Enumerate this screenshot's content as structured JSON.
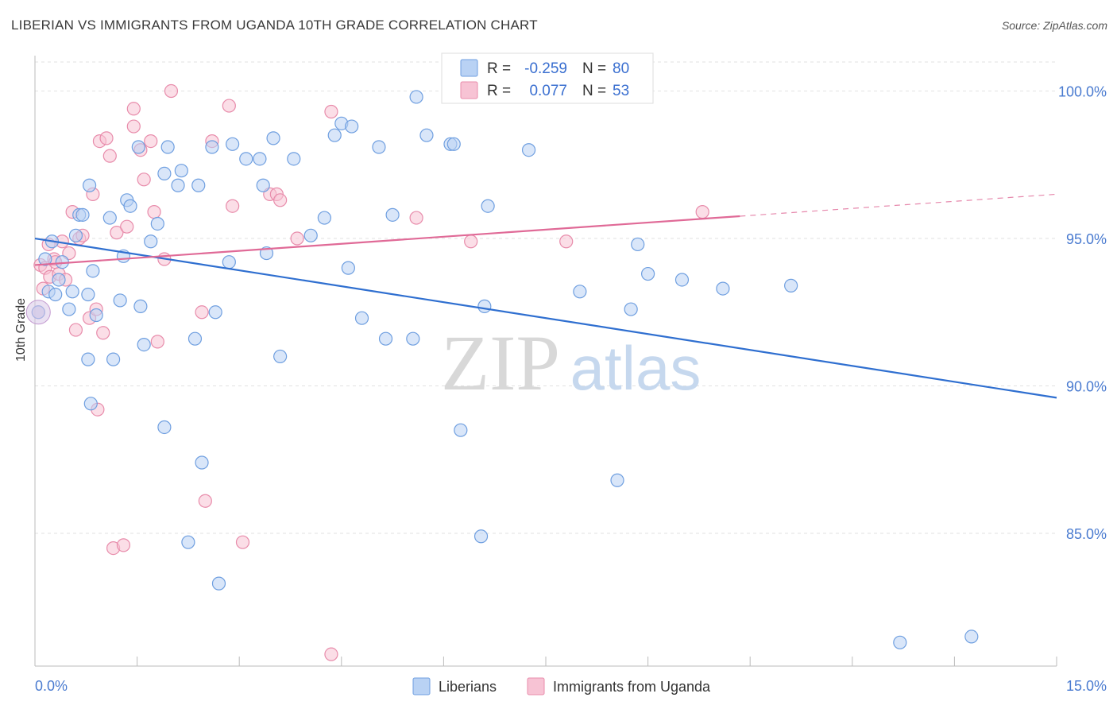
{
  "title": "LIBERIAN VS IMMIGRANTS FROM UGANDA 10TH GRADE CORRELATION CHART",
  "source": "Source: ZipAtlas.com",
  "watermark": {
    "zip": "ZIP",
    "atlas": "atlas"
  },
  "chart_data": {
    "type": "scatter",
    "xlabel": "",
    "ylabel": "10th Grade",
    "xlim": [
      0,
      15
    ],
    "ylim": [
      80.5,
      101.2
    ],
    "x_tick_labels": [
      "0.0%",
      "15.0%"
    ],
    "y_ticks": [
      85,
      90,
      95,
      100
    ],
    "y_tick_labels": [
      "85.0%",
      "90.0%",
      "95.0%",
      "100.0%"
    ],
    "legend_stats": [
      {
        "r_label": "R =",
        "r_value": "-0.259",
        "n_label": "N =",
        "n_value": "80"
      },
      {
        "r_label": "R =",
        "r_value": "0.077",
        "n_label": "N =",
        "n_value": "53"
      }
    ],
    "series": [
      {
        "name": "Liberians",
        "color": "#6f9fe0",
        "fill": "#b9d2f4",
        "trend": {
          "x0": 0,
          "y0": 95.0,
          "x1": 15,
          "y1": 89.6,
          "dashed_from": null
        },
        "points": [
          [
            0.05,
            92.5
          ],
          [
            0.15,
            94.3
          ],
          [
            0.2,
            93.2
          ],
          [
            0.25,
            94.9
          ],
          [
            0.3,
            93.1
          ],
          [
            0.35,
            93.6
          ],
          [
            0.4,
            94.2
          ],
          [
            0.5,
            92.6
          ],
          [
            0.55,
            93.2
          ],
          [
            0.6,
            95.1
          ],
          [
            0.65,
            95.8
          ],
          [
            0.7,
            95.8
          ],
          [
            0.8,
            96.8
          ],
          [
            0.85,
            93.9
          ],
          [
            0.78,
            93.1
          ],
          [
            0.9,
            92.4
          ],
          [
            0.78,
            90.9
          ],
          [
            0.82,
            89.4
          ],
          [
            1.1,
            95.7
          ],
          [
            1.25,
            92.9
          ],
          [
            1.3,
            94.4
          ],
          [
            1.35,
            96.3
          ],
          [
            1.4,
            96.1
          ],
          [
            1.55,
            92.7
          ],
          [
            1.6,
            91.4
          ],
          [
            1.7,
            94.9
          ],
          [
            1.15,
            90.9
          ],
          [
            1.52,
            98.1
          ],
          [
            1.8,
            95.5
          ],
          [
            1.9,
            97.2
          ],
          [
            1.9,
            88.6
          ],
          [
            1.95,
            98.1
          ],
          [
            2.1,
            96.8
          ],
          [
            2.15,
            97.3
          ],
          [
            2.25,
            84.7
          ],
          [
            2.35,
            91.6
          ],
          [
            2.4,
            96.8
          ],
          [
            2.45,
            87.4
          ],
          [
            2.6,
            98.1
          ],
          [
            2.65,
            92.5
          ],
          [
            2.7,
            83.3
          ],
          [
            2.85,
            94.2
          ],
          [
            2.9,
            98.2
          ],
          [
            3.1,
            97.7
          ],
          [
            3.3,
            97.7
          ],
          [
            3.35,
            96.8
          ],
          [
            3.4,
            94.5
          ],
          [
            3.5,
            98.4
          ],
          [
            3.6,
            91.0
          ],
          [
            3.8,
            97.7
          ],
          [
            4.05,
            95.1
          ],
          [
            4.25,
            95.7
          ],
          [
            4.4,
            98.5
          ],
          [
            4.5,
            98.9
          ],
          [
            4.6,
            94.0
          ],
          [
            4.65,
            98.8
          ],
          [
            4.8,
            92.3
          ],
          [
            5.05,
            98.1
          ],
          [
            5.15,
            91.6
          ],
          [
            5.25,
            95.8
          ],
          [
            5.55,
            91.6
          ],
          [
            5.6,
            99.8
          ],
          [
            5.75,
            98.5
          ],
          [
            6.1,
            98.2
          ],
          [
            6.15,
            98.2
          ],
          [
            6.25,
            88.5
          ],
          [
            6.55,
            84.9
          ],
          [
            6.6,
            92.7
          ],
          [
            6.65,
            96.1
          ],
          [
            7.25,
            98.0
          ],
          [
            8.0,
            93.2
          ],
          [
            8.55,
            86.8
          ],
          [
            8.75,
            92.6
          ],
          [
            8.85,
            94.8
          ],
          [
            9.0,
            93.8
          ],
          [
            9.5,
            93.6
          ],
          [
            10.1,
            93.3
          ],
          [
            11.1,
            93.4
          ],
          [
            12.7,
            81.3
          ],
          [
            13.75,
            81.5
          ]
        ]
      },
      {
        "name": "Immigrants from Uganda",
        "color": "#e88cab",
        "fill": "#f7c3d4",
        "trend": {
          "x0": 0,
          "y0": 94.1,
          "x1": 15,
          "y1": 96.5,
          "dashed_from": 10.35
        },
        "points": [
          [
            0.05,
            92.5
          ],
          [
            0.08,
            94.1
          ],
          [
            0.12,
            93.3
          ],
          [
            0.15,
            94.0
          ],
          [
            0.2,
            94.8
          ],
          [
            0.22,
            93.7
          ],
          [
            0.28,
            94.3
          ],
          [
            0.3,
            94.2
          ],
          [
            0.35,
            93.8
          ],
          [
            0.4,
            94.9
          ],
          [
            0.45,
            93.6
          ],
          [
            0.5,
            94.5
          ],
          [
            0.55,
            95.9
          ],
          [
            0.6,
            91.9
          ],
          [
            0.65,
            95.0
          ],
          [
            0.7,
            95.1
          ],
          [
            0.8,
            92.3
          ],
          [
            0.85,
            96.5
          ],
          [
            0.9,
            92.6
          ],
          [
            0.92,
            89.2
          ],
          [
            0.95,
            98.3
          ],
          [
            1.0,
            91.8
          ],
          [
            1.05,
            98.4
          ],
          [
            1.1,
            97.8
          ],
          [
            1.15,
            84.5
          ],
          [
            1.2,
            95.2
          ],
          [
            1.3,
            84.6
          ],
          [
            1.35,
            95.4
          ],
          [
            1.45,
            98.8
          ],
          [
            1.45,
            99.4
          ],
          [
            1.55,
            98.0
          ],
          [
            1.6,
            97.0
          ],
          [
            1.7,
            98.3
          ],
          [
            1.75,
            95.9
          ],
          [
            1.8,
            91.5
          ],
          [
            1.9,
            94.3
          ],
          [
            2.0,
            100.0
          ],
          [
            2.45,
            92.5
          ],
          [
            2.5,
            86.1
          ],
          [
            2.6,
            98.3
          ],
          [
            2.85,
            99.5
          ],
          [
            2.9,
            96.1
          ],
          [
            3.05,
            84.7
          ],
          [
            3.45,
            96.5
          ],
          [
            3.55,
            96.5
          ],
          [
            3.6,
            96.3
          ],
          [
            3.85,
            95.0
          ],
          [
            4.35,
            99.3
          ],
          [
            4.35,
            80.9
          ],
          [
            5.6,
            95.7
          ],
          [
            6.4,
            94.9
          ],
          [
            7.8,
            94.9
          ],
          [
            9.8,
            95.9
          ]
        ]
      }
    ]
  }
}
